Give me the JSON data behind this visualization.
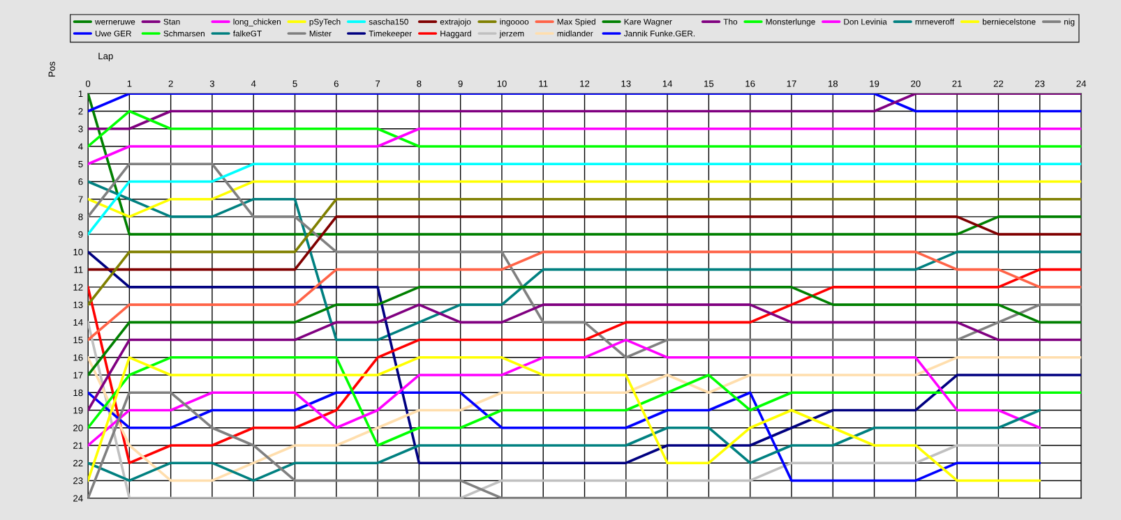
{
  "chart_data": {
    "type": "line",
    "xlabel": "Lap",
    "ylabel": "Pos",
    "x": [
      0,
      1,
      2,
      3,
      4,
      5,
      6,
      7,
      8,
      9,
      10,
      11,
      12,
      13,
      14,
      15,
      16,
      17,
      18,
      19,
      20,
      21,
      22,
      23,
      24
    ],
    "xlim": [
      0,
      24
    ],
    "xticks": [
      0,
      1,
      2,
      3,
      4,
      5,
      6,
      7,
      8,
      9,
      10,
      11,
      12,
      13,
      14,
      15,
      16,
      17,
      18,
      19,
      20,
      21,
      22,
      23,
      24
    ],
    "ylim": [
      24,
      1
    ],
    "yticks": [
      1,
      2,
      3,
      4,
      5,
      6,
      7,
      8,
      9,
      10,
      11,
      12,
      13,
      14,
      15,
      16,
      17,
      18,
      19,
      20,
      21,
      22,
      23,
      24
    ],
    "grid": true,
    "legend": "top",
    "marker": "none",
    "line_style": "solid",
    "series": [
      {
        "name": "werneruwe",
        "color": "#008000",
        "values": [
          1,
          9,
          9,
          9,
          9,
          9,
          9,
          9,
          9,
          9,
          9,
          9,
          9,
          9,
          9,
          9,
          9,
          9,
          9,
          9,
          9,
          9,
          8,
          8,
          8
        ]
      },
      {
        "name": "Uwe GER",
        "color": "#0000ff",
        "values": [
          2,
          1,
          1,
          1,
          1,
          1,
          1,
          1,
          1,
          1,
          1,
          1,
          1,
          1,
          1,
          1,
          1,
          1,
          1,
          1,
          2,
          2,
          2,
          2,
          2
        ]
      },
      {
        "name": "Stan",
        "color": "#800080",
        "values": [
          3,
          3,
          2,
          2,
          2,
          2,
          2,
          2,
          2,
          2,
          2,
          2,
          2,
          2,
          2,
          2,
          2,
          2,
          2,
          2,
          1,
          1,
          1,
          1,
          1
        ]
      },
      {
        "name": "Schmarsen",
        "color": "#00ff00",
        "values": [
          4,
          2,
          3,
          3,
          3,
          3,
          3,
          3,
          4,
          4,
          4,
          4,
          4,
          4,
          4,
          4,
          4,
          4,
          4,
          4,
          4,
          4,
          4,
          4,
          4
        ]
      },
      {
        "name": "long_chicken",
        "color": "#ff00ff",
        "values": [
          5,
          4,
          4,
          4,
          4,
          4,
          4,
          4,
          3,
          3,
          3,
          3,
          3,
          3,
          3,
          3,
          3,
          3,
          3,
          3,
          3,
          3,
          3,
          3,
          3
        ]
      },
      {
        "name": "falkeGT",
        "color": "#008080",
        "values": [
          6,
          7,
          8,
          8,
          7,
          7,
          15,
          15,
          14,
          13,
          13,
          11,
          11,
          11,
          11,
          11,
          11,
          11,
          11,
          11,
          11,
          10,
          10,
          10,
          10
        ]
      },
      {
        "name": "pSyTech",
        "color": "#ffff00",
        "values": [
          7,
          8,
          7,
          7,
          6,
          6,
          6,
          6,
          6,
          6,
          6,
          6,
          6,
          6,
          6,
          6,
          6,
          6,
          6,
          6,
          6,
          6,
          6,
          6,
          6
        ]
      },
      {
        "name": "Mister",
        "color": "#808080",
        "values": [
          8,
          5,
          5,
          5,
          8,
          8,
          10,
          10,
          10,
          10,
          10,
          14,
          14,
          16,
          15,
          15,
          15,
          15,
          15,
          15,
          15,
          15,
          14,
          13,
          13
        ]
      },
      {
        "name": "sascha150",
        "color": "#00ffff",
        "values": [
          9,
          6,
          6,
          6,
          5,
          5,
          5,
          5,
          5,
          5,
          5,
          5,
          5,
          5,
          5,
          5,
          5,
          5,
          5,
          5,
          5,
          5,
          5,
          5,
          5
        ]
      },
      {
        "name": "Timekeeper",
        "color": "#000080",
        "values": [
          10,
          12,
          12,
          12,
          12,
          12,
          12,
          12,
          22,
          22,
          22,
          22,
          22,
          22,
          21,
          21,
          21,
          20,
          19,
          19,
          19,
          17,
          17,
          17,
          17
        ]
      },
      {
        "name": "extrajojo",
        "color": "#800000",
        "values": [
          11,
          11,
          11,
          11,
          11,
          11,
          8,
          8,
          8,
          8,
          8,
          8,
          8,
          8,
          8,
          8,
          8,
          8,
          8,
          8,
          8,
          8,
          9,
          9,
          9
        ]
      },
      {
        "name": "Haggard",
        "color": "#ff0000",
        "values": [
          12,
          22,
          21,
          21,
          20,
          20,
          19,
          16,
          15,
          15,
          15,
          15,
          15,
          14,
          14,
          14,
          14,
          13,
          12,
          12,
          12,
          12,
          12,
          11,
          11
        ]
      },
      {
        "name": "ingoooo",
        "color": "#808000",
        "values": [
          13,
          10,
          10,
          10,
          10,
          10,
          7,
          7,
          7,
          7,
          7,
          7,
          7,
          7,
          7,
          7,
          7,
          7,
          7,
          7,
          7,
          7,
          7,
          7,
          7
        ]
      },
      {
        "name": "jerzem",
        "color": "#c0c0c0",
        "values": [
          14,
          24,
          24,
          24,
          24,
          24,
          24,
          24,
          24,
          24,
          23,
          23,
          23,
          23,
          23,
          23,
          23,
          22,
          22,
          22,
          22,
          21,
          21,
          21,
          null
        ]
      },
      {
        "name": "Max Spied",
        "color": "#ff6347",
        "values": [
          15,
          13,
          13,
          13,
          13,
          13,
          11,
          11,
          11,
          11,
          11,
          10,
          10,
          10,
          10,
          10,
          10,
          10,
          10,
          10,
          10,
          11,
          11,
          12,
          12
        ]
      },
      {
        "name": "midlander",
        "color": "#ffdead",
        "values": [
          16,
          21,
          23,
          23,
          22,
          21,
          21,
          20,
          19,
          19,
          18,
          18,
          18,
          18,
          17,
          18,
          17,
          17,
          17,
          17,
          17,
          16,
          16,
          16,
          16
        ]
      },
      {
        "name": "Kare Wagner",
        "color": "#008000",
        "values": [
          17,
          14,
          14,
          14,
          14,
          14,
          13,
          13,
          12,
          12,
          12,
          12,
          12,
          12,
          12,
          12,
          12,
          12,
          13,
          13,
          13,
          13,
          13,
          14,
          14
        ]
      },
      {
        "name": "Jannik Funke.GER.",
        "color": "#0000ff",
        "values": [
          18,
          20,
          20,
          19,
          19,
          19,
          18,
          18,
          18,
          18,
          20,
          20,
          20,
          20,
          19,
          19,
          18,
          23,
          23,
          23,
          23,
          22,
          22,
          22,
          null
        ]
      },
      {
        "name": "Tho",
        "color": "#800080",
        "values": [
          19,
          15,
          15,
          15,
          15,
          15,
          14,
          14,
          13,
          14,
          14,
          13,
          13,
          13,
          13,
          13,
          13,
          14,
          14,
          14,
          14,
          14,
          15,
          15,
          15
        ]
      },
      {
        "name": "Monsterlunge",
        "color": "#00ff00",
        "values": [
          20,
          17,
          16,
          16,
          16,
          16,
          16,
          21,
          20,
          20,
          19,
          19,
          19,
          19,
          18,
          17,
          19,
          18,
          18,
          18,
          18,
          18,
          18,
          18,
          18
        ]
      },
      {
        "name": "Don Levinia",
        "color": "#ff00ff",
        "values": [
          21,
          19,
          19,
          18,
          18,
          18,
          20,
          19,
          17,
          17,
          17,
          16,
          16,
          15,
          16,
          16,
          16,
          16,
          16,
          16,
          16,
          19,
          19,
          20,
          null
        ]
      },
      {
        "name": "mrneveroff",
        "color": "#008080",
        "values": [
          22,
          23,
          22,
          22,
          23,
          22,
          22,
          22,
          21,
          21,
          21,
          21,
          21,
          21,
          20,
          20,
          22,
          21,
          21,
          20,
          20,
          20,
          20,
          19,
          null
        ]
      },
      {
        "name": "berniecelstone",
        "color": "#ffff00",
        "values": [
          23,
          16,
          17,
          17,
          17,
          17,
          17,
          17,
          16,
          16,
          16,
          17,
          17,
          17,
          22,
          22,
          20,
          19,
          20,
          21,
          21,
          23,
          23,
          23,
          null
        ]
      },
      {
        "name": "nig",
        "color": "#808080",
        "values": [
          24,
          18,
          18,
          20,
          21,
          23,
          23,
          23,
          23,
          23,
          24,
          24,
          24,
          24,
          24,
          24,
          24,
          24,
          24,
          24,
          24,
          24,
          24,
          null,
          null
        ]
      }
    ]
  }
}
